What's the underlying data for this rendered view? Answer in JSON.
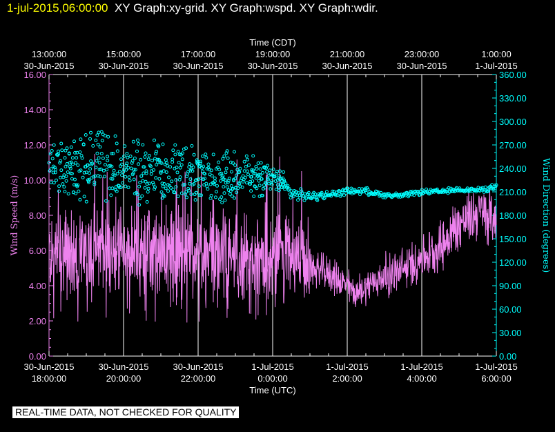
{
  "header": {
    "timestamp": "1-jul-2015,06:00:00",
    "graphs": "XY Graph:xy-grid.  XY Graph:wspd.  XY Graph:wdir."
  },
  "chart_data": {
    "type": "line+scatter",
    "top_axis": {
      "title": "Time (CDT)",
      "ticks": [
        {
          "t": 0,
          "time": "13:00:00",
          "date": "30-Jun-2015"
        },
        {
          "t": 2,
          "time": "15:00:00",
          "date": "30-Jun-2015"
        },
        {
          "t": 4,
          "time": "17:00:00",
          "date": "30-Jun-2015"
        },
        {
          "t": 6,
          "time": "19:00:00",
          "date": "30-Jun-2015"
        },
        {
          "t": 8,
          "time": "21:00:00",
          "date": "30-Jun-2015"
        },
        {
          "t": 10,
          "time": "23:00:00",
          "date": "30-Jun-2015"
        },
        {
          "t": 12,
          "time": "1:00:00",
          "date": "1-Jul-2015"
        }
      ]
    },
    "bottom_axis": {
      "title": "Time (UTC)",
      "ticks": [
        {
          "t": 0,
          "date": "30-Jun-2015",
          "time": "18:00:00"
        },
        {
          "t": 2,
          "date": "30-Jun-2015",
          "time": "20:00:00"
        },
        {
          "t": 4,
          "date": "30-Jun-2015",
          "time": "22:00:00"
        },
        {
          "t": 6,
          "date": "1-Jul-2015",
          "time": "0:00:00"
        },
        {
          "t": 8,
          "date": "1-Jul-2015",
          "time": "2:00:00"
        },
        {
          "t": 10,
          "date": "1-Jul-2015",
          "time": "4:00:00"
        },
        {
          "t": 12,
          "date": "1-Jul-2015",
          "time": "6:00:00"
        }
      ]
    },
    "x_range_hours": [
      0,
      12
    ],
    "left_axis": {
      "label": "Wind Speed (m/s)",
      "range": [
        0,
        16
      ],
      "ticks": [
        "0.00",
        "2.00",
        "4.00",
        "6.00",
        "8.00",
        "10.00",
        "12.00",
        "14.00",
        "16.00"
      ]
    },
    "right_axis": {
      "label": "Wind Direction (degrees)",
      "range": [
        0,
        360
      ],
      "ticks": [
        "0.00",
        "30.00",
        "60.00",
        "90.00",
        "120.00",
        "150.00",
        "180.00",
        "210.00",
        "240.00",
        "270.00",
        "300.00",
        "330.00",
        "360.00"
      ]
    },
    "series": [
      {
        "name": "wspd",
        "style": "line",
        "color": "#ee82ee",
        "hours": [
          0,
          0.5,
          1,
          1.5,
          2,
          2.5,
          3,
          3.5,
          4,
          4.5,
          5,
          5.5,
          6,
          6.5,
          7,
          7.5,
          8,
          8.25,
          8.5,
          9,
          9.5,
          10,
          10.5,
          11,
          11.5,
          12
        ],
        "mean_mps": [
          5.8,
          5.6,
          5.8,
          5.9,
          5.6,
          5.9,
          5.8,
          6.0,
          5.6,
          5.7,
          5.5,
          5.3,
          5.5,
          5.6,
          5.0,
          4.7,
          4.0,
          3.5,
          4.0,
          4.5,
          4.9,
          5.6,
          6.2,
          7.5,
          8.2,
          7.8
        ],
        "peak_mps": 11.6,
        "min_mps": 1.8
      },
      {
        "name": "wdir",
        "style": "scatter",
        "color": "#00ffff",
        "hours": [
          0,
          0.5,
          1,
          1.5,
          2,
          2.5,
          3,
          3.5,
          4,
          4.5,
          5,
          5.5,
          6,
          6.25,
          6.5,
          7,
          7.5,
          8,
          8.5,
          9,
          9.5,
          10,
          10.5,
          11,
          11.5,
          12
        ],
        "mean_deg": [
          250,
          235,
          242,
          243,
          238,
          234,
          240,
          236,
          232,
          226,
          232,
          230,
          225,
          222,
          208,
          204,
          206,
          211,
          211,
          206,
          205,
          210,
          210,
          213,
          212,
          216
        ],
        "spread_deg": [
          30,
          35,
          45,
          48,
          42,
          42,
          40,
          38,
          35,
          35,
          32,
          28,
          15,
          14,
          10,
          7,
          6,
          5,
          5,
          4,
          4,
          4,
          4,
          4,
          4,
          5
        ]
      }
    ]
  },
  "footer": {
    "quality_notice": "REAL-TIME DATA, NOT CHECKED FOR QUALITY"
  }
}
